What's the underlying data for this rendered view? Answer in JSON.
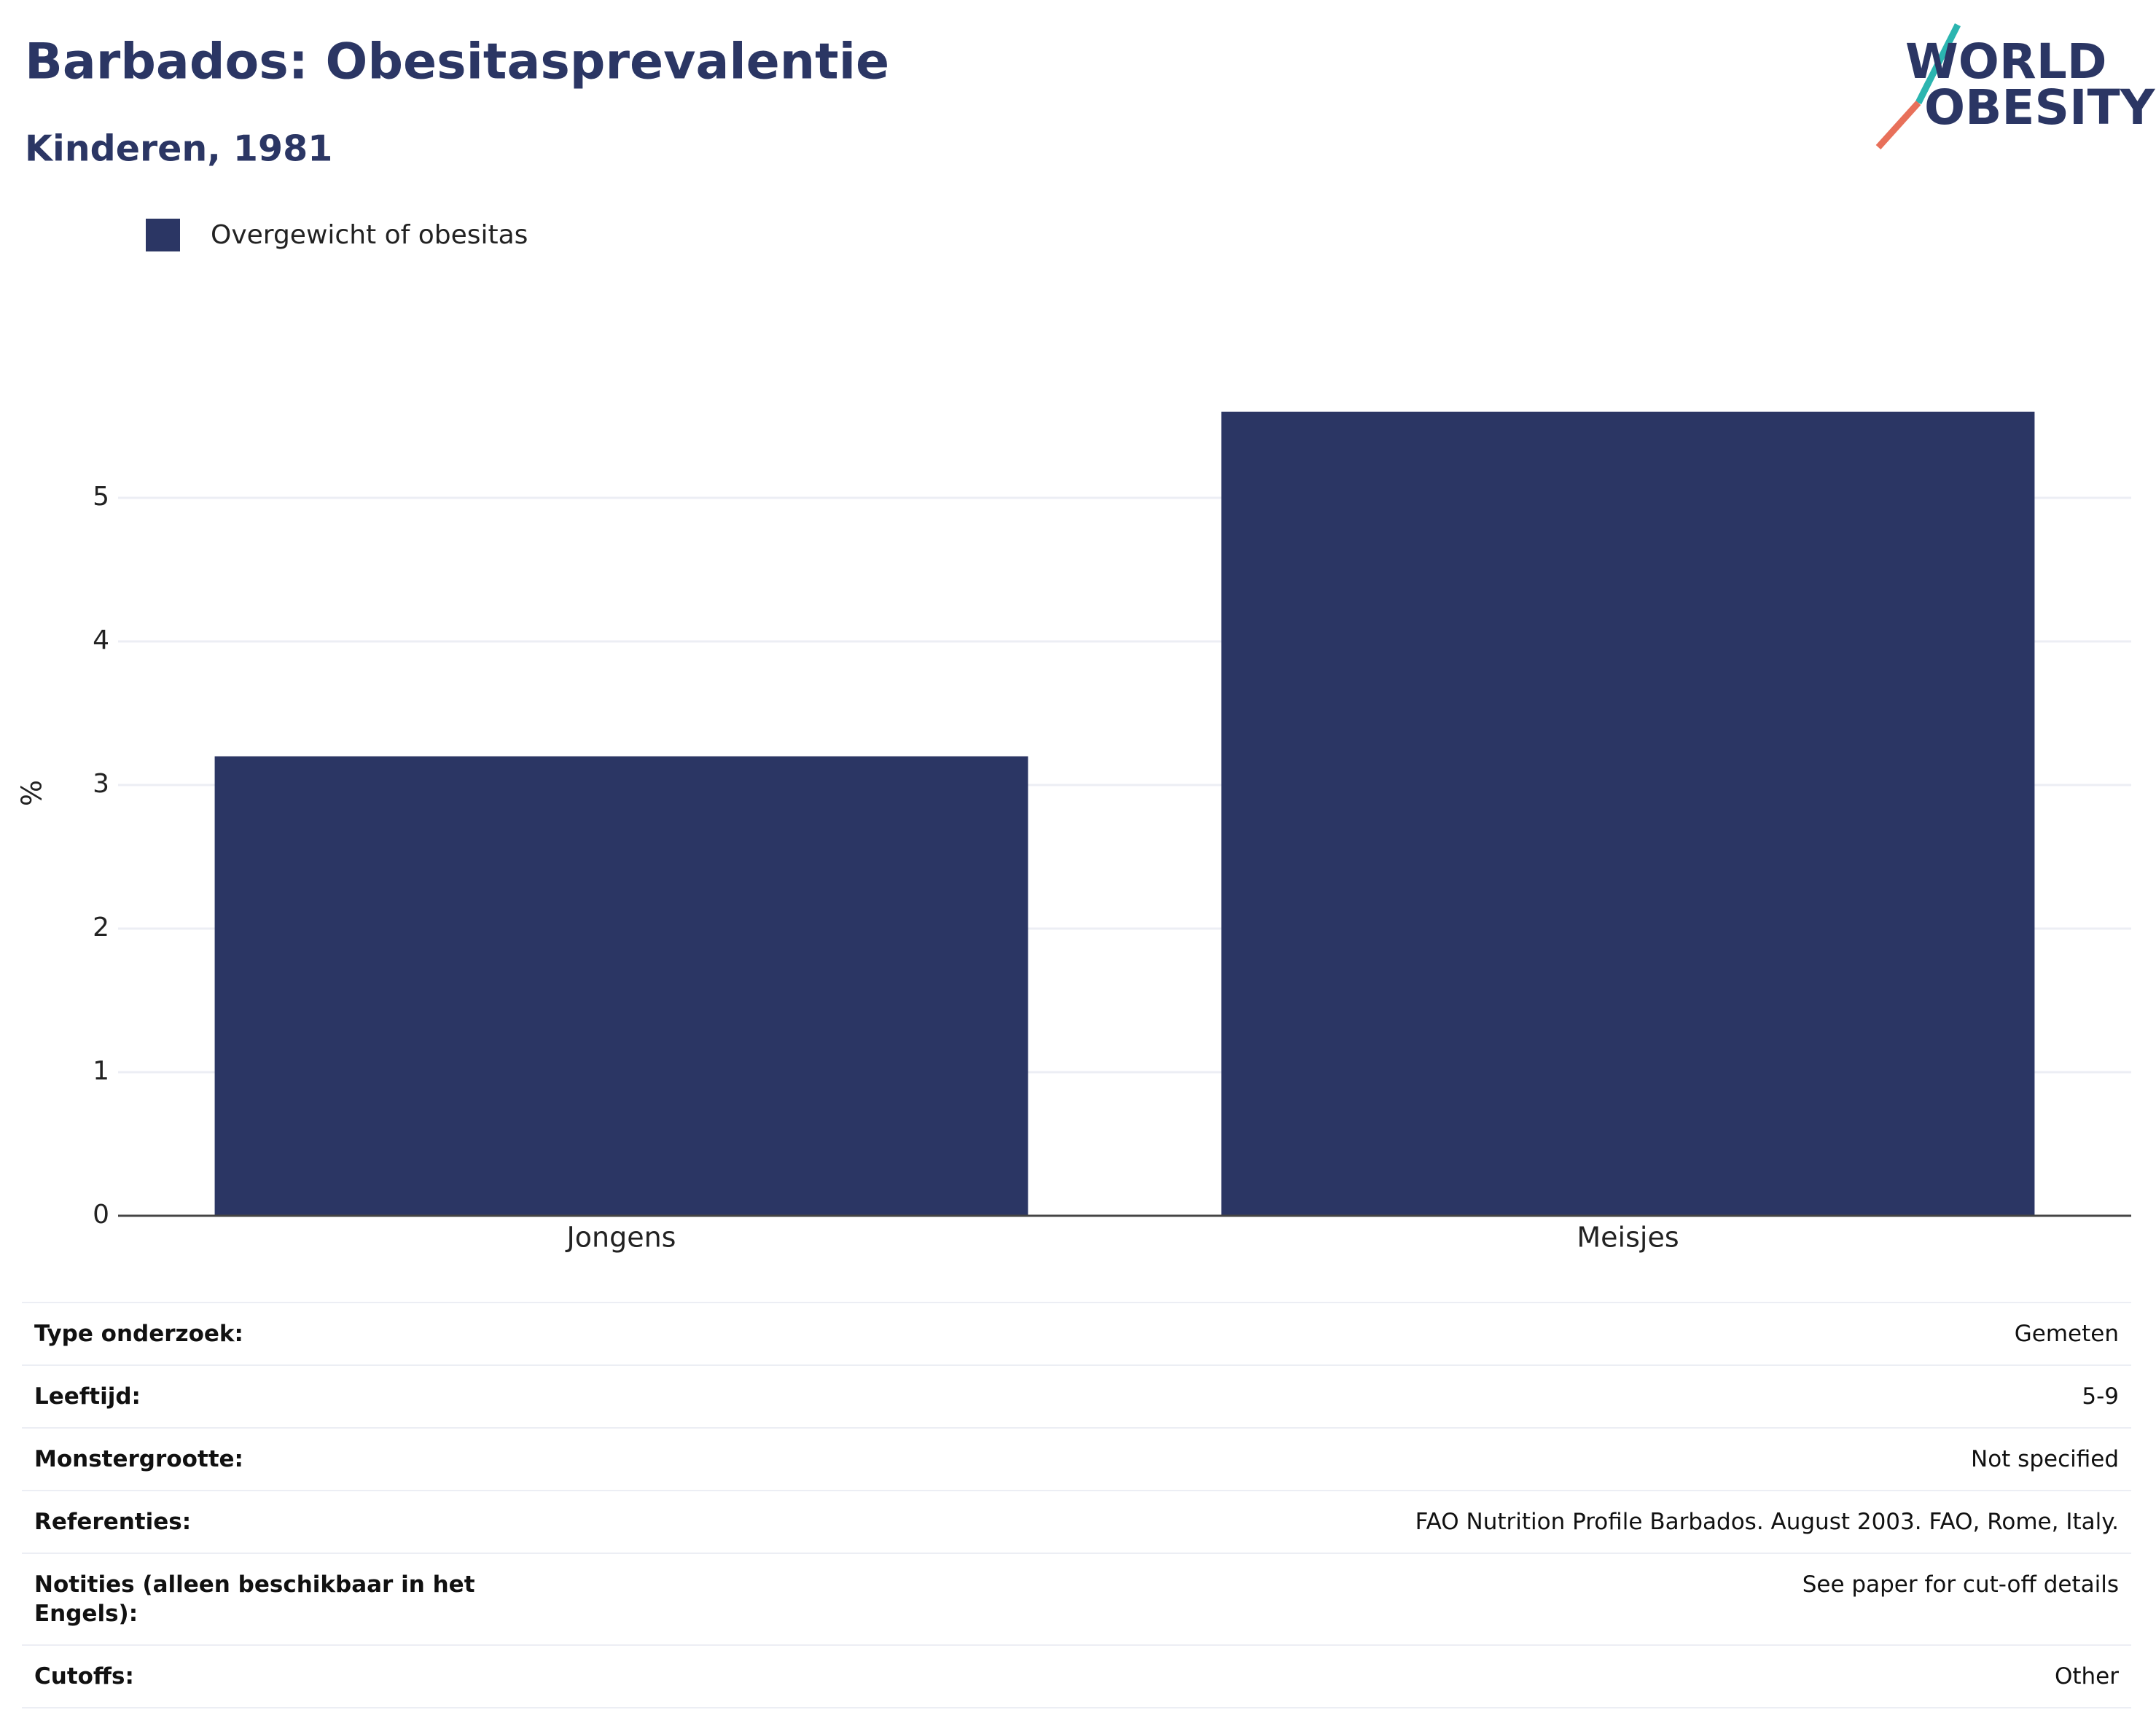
{
  "chart_data": {
    "type": "bar",
    "title": "Barbados: Obesitasprevalentie",
    "subtitle": "Kinderen, 1981",
    "y_label": "%",
    "categories": [
      "Jongens",
      "Meisjes"
    ],
    "series": [
      {
        "name": "Overgewicht of obesitas",
        "color": "#2b3664",
        "values": [
          3.2,
          5.6
        ]
      }
    ],
    "ylim": [
      0,
      5.9
    ],
    "yticks": [
      0,
      1,
      2,
      3,
      4,
      5
    ],
    "grid": true,
    "legend": "top-left"
  },
  "logo": {
    "line1": "WORLD",
    "line2": "OBESITY"
  },
  "table": {
    "rows": [
      [
        "Type onderzoek:",
        "Gemeten"
      ],
      [
        "Leeftijd:",
        "5-9"
      ],
      [
        "Monstergrootte:",
        "Not specified"
      ],
      [
        "Referenties:",
        "FAO Nutrition Profile Barbados. August 2003. FAO, Rome, Italy."
      ],
      [
        "Notities (alleen beschikbaar in het Engels):",
        "See paper for cut-off details"
      ],
      [
        "Cutoffs:",
        "Other"
      ]
    ]
  }
}
